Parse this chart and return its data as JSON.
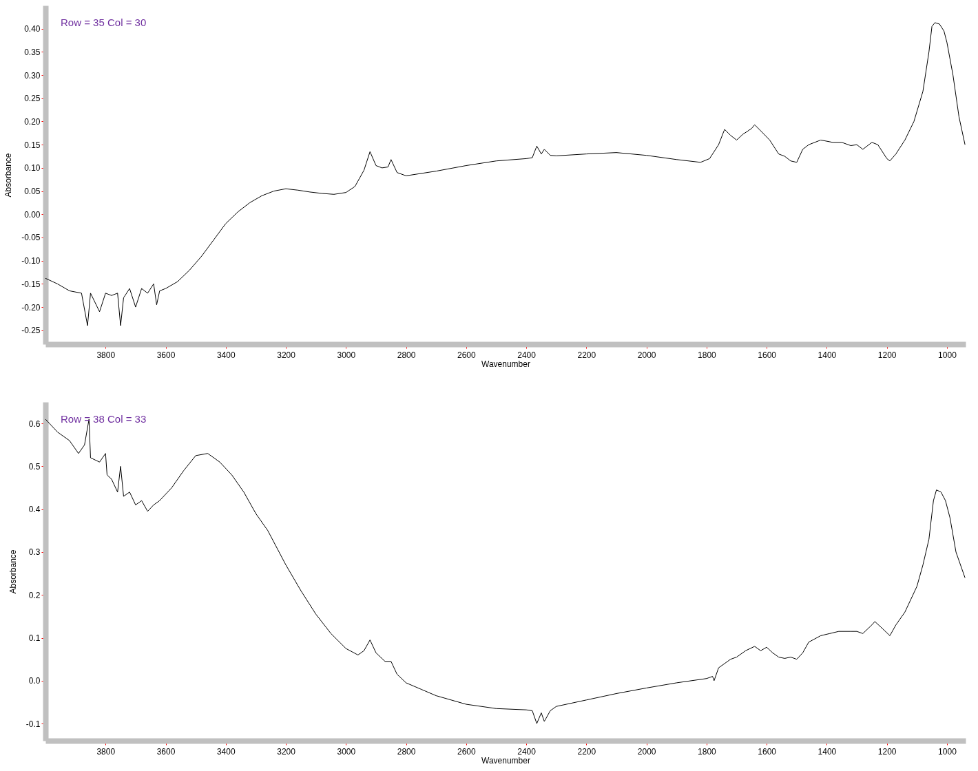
{
  "chart_data": [
    {
      "type": "line",
      "xlabel": "Wavenumber",
      "ylabel": "Absorbance",
      "annotations": [
        "Row = 35 Col = 30"
      ],
      "xlim": [
        4000,
        938
      ],
      "ylim": [
        -0.28,
        0.45
      ],
      "xticks": [
        3800,
        3600,
        3400,
        3200,
        3000,
        2800,
        2600,
        2400,
        2200,
        2000,
        1800,
        1600,
        1400,
        1200,
        1000
      ],
      "yticks": [
        {
          "value": -0.25,
          "label": "-0.25"
        },
        {
          "value": -0.2,
          "label": "-0.20"
        },
        {
          "value": -0.15,
          "label": "-0.15"
        },
        {
          "value": -0.1,
          "label": "-0.10"
        },
        {
          "value": -0.05,
          "label": "-0.05"
        },
        {
          "value": 0.0,
          "label": "0.00"
        },
        {
          "value": 0.05,
          "label": "0.05"
        },
        {
          "value": 0.1,
          "label": "0.10"
        },
        {
          "value": 0.15,
          "label": "0.15"
        },
        {
          "value": 0.2,
          "label": "0.20"
        },
        {
          "value": 0.25,
          "label": "0.25"
        },
        {
          "value": 0.3,
          "label": "0.30"
        },
        {
          "value": 0.35,
          "label": "0.35"
        },
        {
          "value": 0.4,
          "label": "0.40"
        }
      ],
      "grid": false,
      "marker": "none",
      "line_style": "solid",
      "series": [
        {
          "color": "#000000",
          "x": [
            4000,
            3960,
            3920,
            3880,
            3860,
            3850,
            3820,
            3800,
            3780,
            3760,
            3750,
            3740,
            3720,
            3700,
            3680,
            3660,
            3640,
            3630,
            3620,
            3600,
            3560,
            3520,
            3480,
            3440,
            3400,
            3360,
            3320,
            3280,
            3240,
            3200,
            3160,
            3120,
            3080,
            3040,
            3000,
            2970,
            2940,
            2920,
            2900,
            2880,
            2860,
            2850,
            2830,
            2800,
            2700,
            2600,
            2500,
            2400,
            2380,
            2365,
            2350,
            2340,
            2320,
            2300,
            2200,
            2100,
            2000,
            1900,
            1820,
            1790,
            1760,
            1740,
            1720,
            1700,
            1680,
            1650,
            1640,
            1620,
            1590,
            1560,
            1540,
            1520,
            1500,
            1480,
            1460,
            1420,
            1380,
            1350,
            1320,
            1300,
            1280,
            1250,
            1230,
            1200,
            1190,
            1170,
            1140,
            1110,
            1080,
            1060,
            1050,
            1040,
            1025,
            1010,
            1000,
            980,
            960,
            940
          ],
          "values": [
            -0.138,
            -0.15,
            -0.165,
            -0.17,
            -0.24,
            -0.17,
            -0.21,
            -0.17,
            -0.175,
            -0.17,
            -0.24,
            -0.18,
            -0.16,
            -0.2,
            -0.16,
            -0.17,
            -0.15,
            -0.195,
            -0.165,
            -0.16,
            -0.145,
            -0.12,
            -0.09,
            -0.055,
            -0.02,
            0.005,
            0.025,
            0.04,
            0.05,
            0.055,
            0.052,
            0.048,
            0.045,
            0.043,
            0.047,
            0.06,
            0.095,
            0.135,
            0.105,
            0.1,
            0.102,
            0.118,
            0.09,
            0.083,
            0.093,
            0.105,
            0.115,
            0.12,
            0.122,
            0.147,
            0.13,
            0.14,
            0.127,
            0.126,
            0.13,
            0.133,
            0.127,
            0.118,
            0.112,
            0.12,
            0.15,
            0.183,
            0.17,
            0.16,
            0.172,
            0.185,
            0.193,
            0.18,
            0.16,
            0.13,
            0.125,
            0.115,
            0.112,
            0.14,
            0.15,
            0.16,
            0.155,
            0.155,
            0.148,
            0.15,
            0.14,
            0.155,
            0.15,
            0.12,
            0.115,
            0.13,
            0.16,
            0.2,
            0.265,
            0.35,
            0.405,
            0.413,
            0.41,
            0.395,
            0.37,
            0.3,
            0.21,
            0.15
          ]
        }
      ]
    },
    {
      "type": "line",
      "xlabel": "Wavenumber",
      "ylabel": "Absorbance",
      "annotations": [
        "Row = 38 Col = 33"
      ],
      "xlim": [
        4000,
        938
      ],
      "ylim": [
        -0.14,
        0.65
      ],
      "xticks": [
        3800,
        3600,
        3400,
        3200,
        3000,
        2800,
        2600,
        2400,
        2200,
        2000,
        1800,
        1600,
        1400,
        1200,
        1000
      ],
      "yticks": [
        {
          "value": -0.1,
          "label": "-0.1"
        },
        {
          "value": 0.0,
          "label": "0.0"
        },
        {
          "value": 0.1,
          "label": "0.1"
        },
        {
          "value": 0.2,
          "label": "0.2"
        },
        {
          "value": 0.3,
          "label": "0.3"
        },
        {
          "value": 0.4,
          "label": "0.4"
        },
        {
          "value": 0.5,
          "label": "0.5"
        },
        {
          "value": 0.6,
          "label": "0.6"
        }
      ],
      "grid": false,
      "marker": "none",
      "line_style": "solid",
      "series": [
        {
          "color": "#000000",
          "x": [
            4000,
            3960,
            3920,
            3890,
            3870,
            3855,
            3850,
            3820,
            3800,
            3795,
            3780,
            3760,
            3750,
            3740,
            3720,
            3700,
            3680,
            3660,
            3640,
            3620,
            3580,
            3540,
            3500,
            3460,
            3420,
            3380,
            3340,
            3300,
            3260,
            3200,
            3150,
            3100,
            3050,
            3000,
            2960,
            2940,
            2920,
            2900,
            2870,
            2850,
            2830,
            2800,
            2750,
            2700,
            2600,
            2500,
            2400,
            2380,
            2365,
            2350,
            2340,
            2320,
            2300,
            2200,
            2100,
            2000,
            1900,
            1800,
            1780,
            1775,
            1760,
            1740,
            1720,
            1700,
            1670,
            1640,
            1620,
            1600,
            1580,
            1560,
            1540,
            1520,
            1500,
            1480,
            1460,
            1420,
            1390,
            1360,
            1320,
            1300,
            1280,
            1250,
            1240,
            1220,
            1190,
            1170,
            1140,
            1100,
            1080,
            1060,
            1045,
            1035,
            1020,
            1005,
            990,
            970,
            940
          ],
          "values": [
            0.61,
            0.58,
            0.56,
            0.53,
            0.55,
            0.61,
            0.52,
            0.51,
            0.53,
            0.48,
            0.47,
            0.44,
            0.5,
            0.43,
            0.44,
            0.41,
            0.42,
            0.395,
            0.41,
            0.42,
            0.45,
            0.49,
            0.525,
            0.53,
            0.51,
            0.48,
            0.44,
            0.39,
            0.35,
            0.27,
            0.21,
            0.155,
            0.11,
            0.075,
            0.06,
            0.07,
            0.095,
            0.065,
            0.045,
            0.045,
            0.015,
            -0.005,
            -0.02,
            -0.035,
            -0.055,
            -0.065,
            -0.068,
            -0.07,
            -0.1,
            -0.075,
            -0.095,
            -0.07,
            -0.06,
            -0.045,
            -0.03,
            -0.017,
            -0.005,
            0.005,
            0.01,
            0.0,
            0.03,
            0.04,
            0.05,
            0.055,
            0.07,
            0.08,
            0.07,
            0.078,
            0.065,
            0.055,
            0.052,
            0.055,
            0.05,
            0.065,
            0.09,
            0.105,
            0.11,
            0.115,
            0.115,
            0.115,
            0.11,
            0.13,
            0.138,
            0.125,
            0.105,
            0.13,
            0.16,
            0.22,
            0.27,
            0.33,
            0.42,
            0.445,
            0.44,
            0.42,
            0.38,
            0.3,
            0.24
          ]
        }
      ]
    }
  ]
}
